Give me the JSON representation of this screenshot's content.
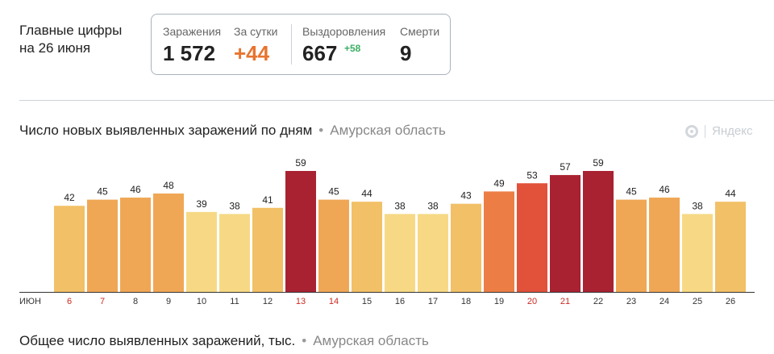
{
  "headline": {
    "line1": "Главные цифры",
    "line2": "на 26 июня"
  },
  "stats": {
    "infections_label": "Заражения",
    "infections_value": "1 572",
    "daily_label": "За сутки",
    "daily_value": "+44",
    "recoveries_label": "Выздоровления",
    "recoveries_value": "667",
    "recoveries_delta": "+58",
    "deaths_label": "Смерти",
    "deaths_value": "9"
  },
  "chart_title": {
    "text": "Число новых выявленных заражений по дням",
    "separator": "•",
    "region": "Амурская область"
  },
  "brand": {
    "text": "Яндекс",
    "icon": "yandex-logo-icon"
  },
  "bottom_title": {
    "text": "Общее число выявленных заражений, тыс.",
    "separator": "•",
    "region": "Амурская область"
  },
  "chart_data": {
    "type": "bar",
    "month_label": "ИЮН",
    "categories": [
      "6",
      "7",
      "8",
      "9",
      "10",
      "11",
      "12",
      "13",
      "14",
      "15",
      "16",
      "17",
      "18",
      "19",
      "20",
      "21",
      "22",
      "23",
      "24",
      "25",
      "26"
    ],
    "values": [
      42,
      45,
      46,
      48,
      39,
      38,
      41,
      59,
      45,
      44,
      38,
      38,
      43,
      49,
      53,
      57,
      59,
      45,
      46,
      38,
      44
    ],
    "weekend_categories": [
      "6",
      "7",
      "13",
      "14",
      "20",
      "21"
    ],
    "ylim": [
      0,
      59
    ],
    "colors": {
      "scale": [
        "#f7d985",
        "#f2c066",
        "#f0a755",
        "#ec7e45",
        "#e2513a",
        "#a82232"
      ],
      "weekend_tick": "#cc2a1f",
      "tick": "#333333",
      "label": "#222222"
    }
  }
}
